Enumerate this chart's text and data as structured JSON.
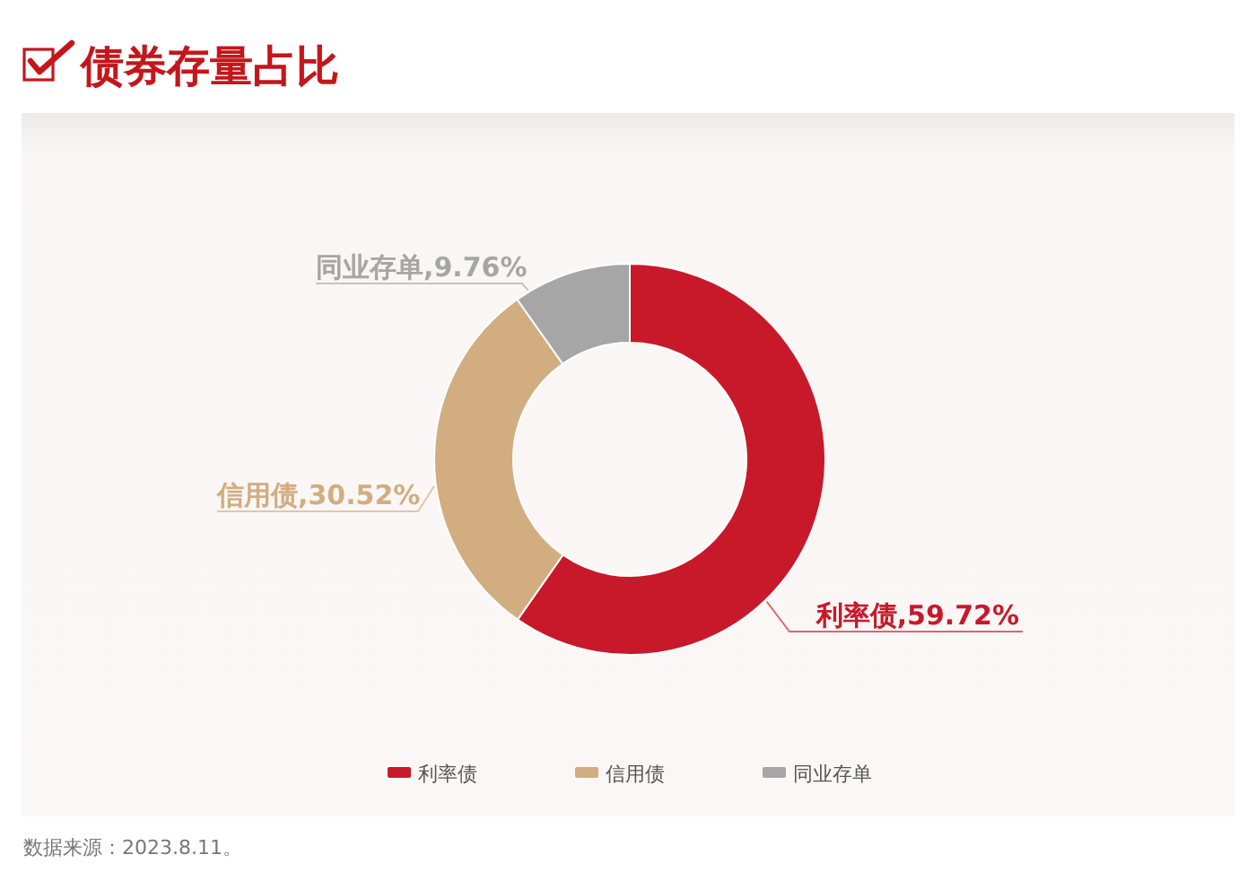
{
  "chart_data": {
    "type": "donut",
    "title": "债券存量占比",
    "categories": [
      "利率债",
      "信用债",
      "同业存单"
    ],
    "values": [
      59.72,
      30.52,
      9.76
    ],
    "colors": [
      "#c8192a",
      "#d2ad80",
      "#a6a6a6"
    ],
    "value_labels": [
      "利率债,59.72%",
      "信用债,30.52%",
      "同业存单,9.76%"
    ],
    "legend": "bottom",
    "annotations": [
      "数据来源：2023.8.11。"
    ]
  }
}
